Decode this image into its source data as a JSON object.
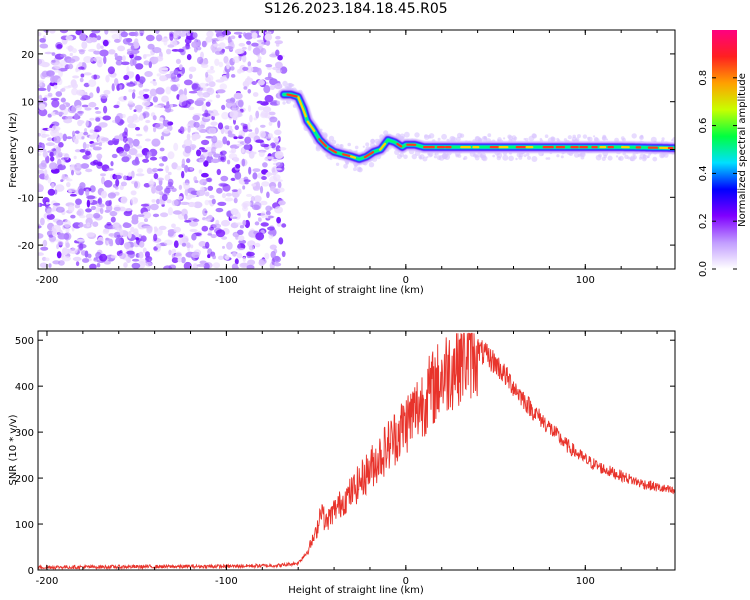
{
  "title": "S126.2023.184.18.45.R05",
  "chart_data": [
    {
      "type": "heatmap",
      "xlabel": "Height of straight line (km)",
      "ylabel": "Frequency (Hz)",
      "xlim": [
        -205,
        150
      ],
      "ylim": [
        -25,
        25
      ],
      "x_ticks": [
        -200,
        -100,
        0,
        100
      ],
      "y_ticks": [
        -20,
        -10,
        0,
        10,
        20
      ],
      "noise_region": [
        -205,
        -68
      ],
      "ridge": {
        "x": [
          -68,
          -64,
          -60,
          -57,
          -55,
          -52,
          -48,
          -44,
          -40,
          -35,
          -30,
          -26,
          -22,
          -18,
          -14,
          -10,
          -6,
          -2,
          0,
          5,
          10,
          20,
          40,
          60,
          80,
          100,
          120,
          150
        ],
        "y": [
          11.5,
          11.5,
          11,
          8.5,
          6,
          4.5,
          2,
          0.5,
          -0.5,
          -1,
          -1.5,
          -2,
          -1.5,
          -0.5,
          0,
          2,
          1.5,
          0.5,
          1,
          1,
          0.5,
          0.5,
          0.5,
          0.5,
          0.5,
          0.5,
          0.5,
          0.3
        ]
      },
      "colorbar": {
        "label": "Normalized spectral amplitude",
        "ticks": [
          "0.0",
          "0.2",
          "0.4",
          "0.6",
          "0.8"
        ],
        "tick_values": [
          0,
          0.2,
          0.4,
          0.6,
          0.8
        ],
        "range": [
          0,
          1
        ],
        "colors": [
          "#ffffff",
          "#c19cff",
          "#8000ff",
          "#0000ff",
          "#00e0ff",
          "#00ff40",
          "#c8ff00",
          "#ffa000",
          "#ff2020",
          "#ff0080"
        ]
      },
      "grid": false
    },
    {
      "type": "line",
      "xlabel": "Height of straight line (km)",
      "ylabel": "SNR (10 * v/v)",
      "xlim": [
        -205,
        150
      ],
      "ylim": [
        0,
        520
      ],
      "x_ticks": [
        -200,
        -100,
        0,
        100
      ],
      "y_ticks": [
        0,
        100,
        200,
        300,
        400,
        500
      ],
      "color": "#e8332b",
      "grid": false,
      "envelope": {
        "x": [
          -205,
          -100,
          -70,
          -60,
          -55,
          -50,
          -47,
          -45,
          -40,
          -30,
          -20,
          -10,
          0,
          10,
          20,
          30,
          40,
          50,
          60,
          70,
          80,
          90,
          100,
          110,
          120,
          130,
          140,
          150
        ],
        "y": [
          6,
          8,
          10,
          15,
          40,
          80,
          140,
          100,
          130,
          170,
          220,
          270,
          320,
          370,
          420,
          460,
          480,
          450,
          400,
          350,
          310,
          270,
          240,
          220,
          205,
          190,
          180,
          170
        ]
      }
    }
  ]
}
